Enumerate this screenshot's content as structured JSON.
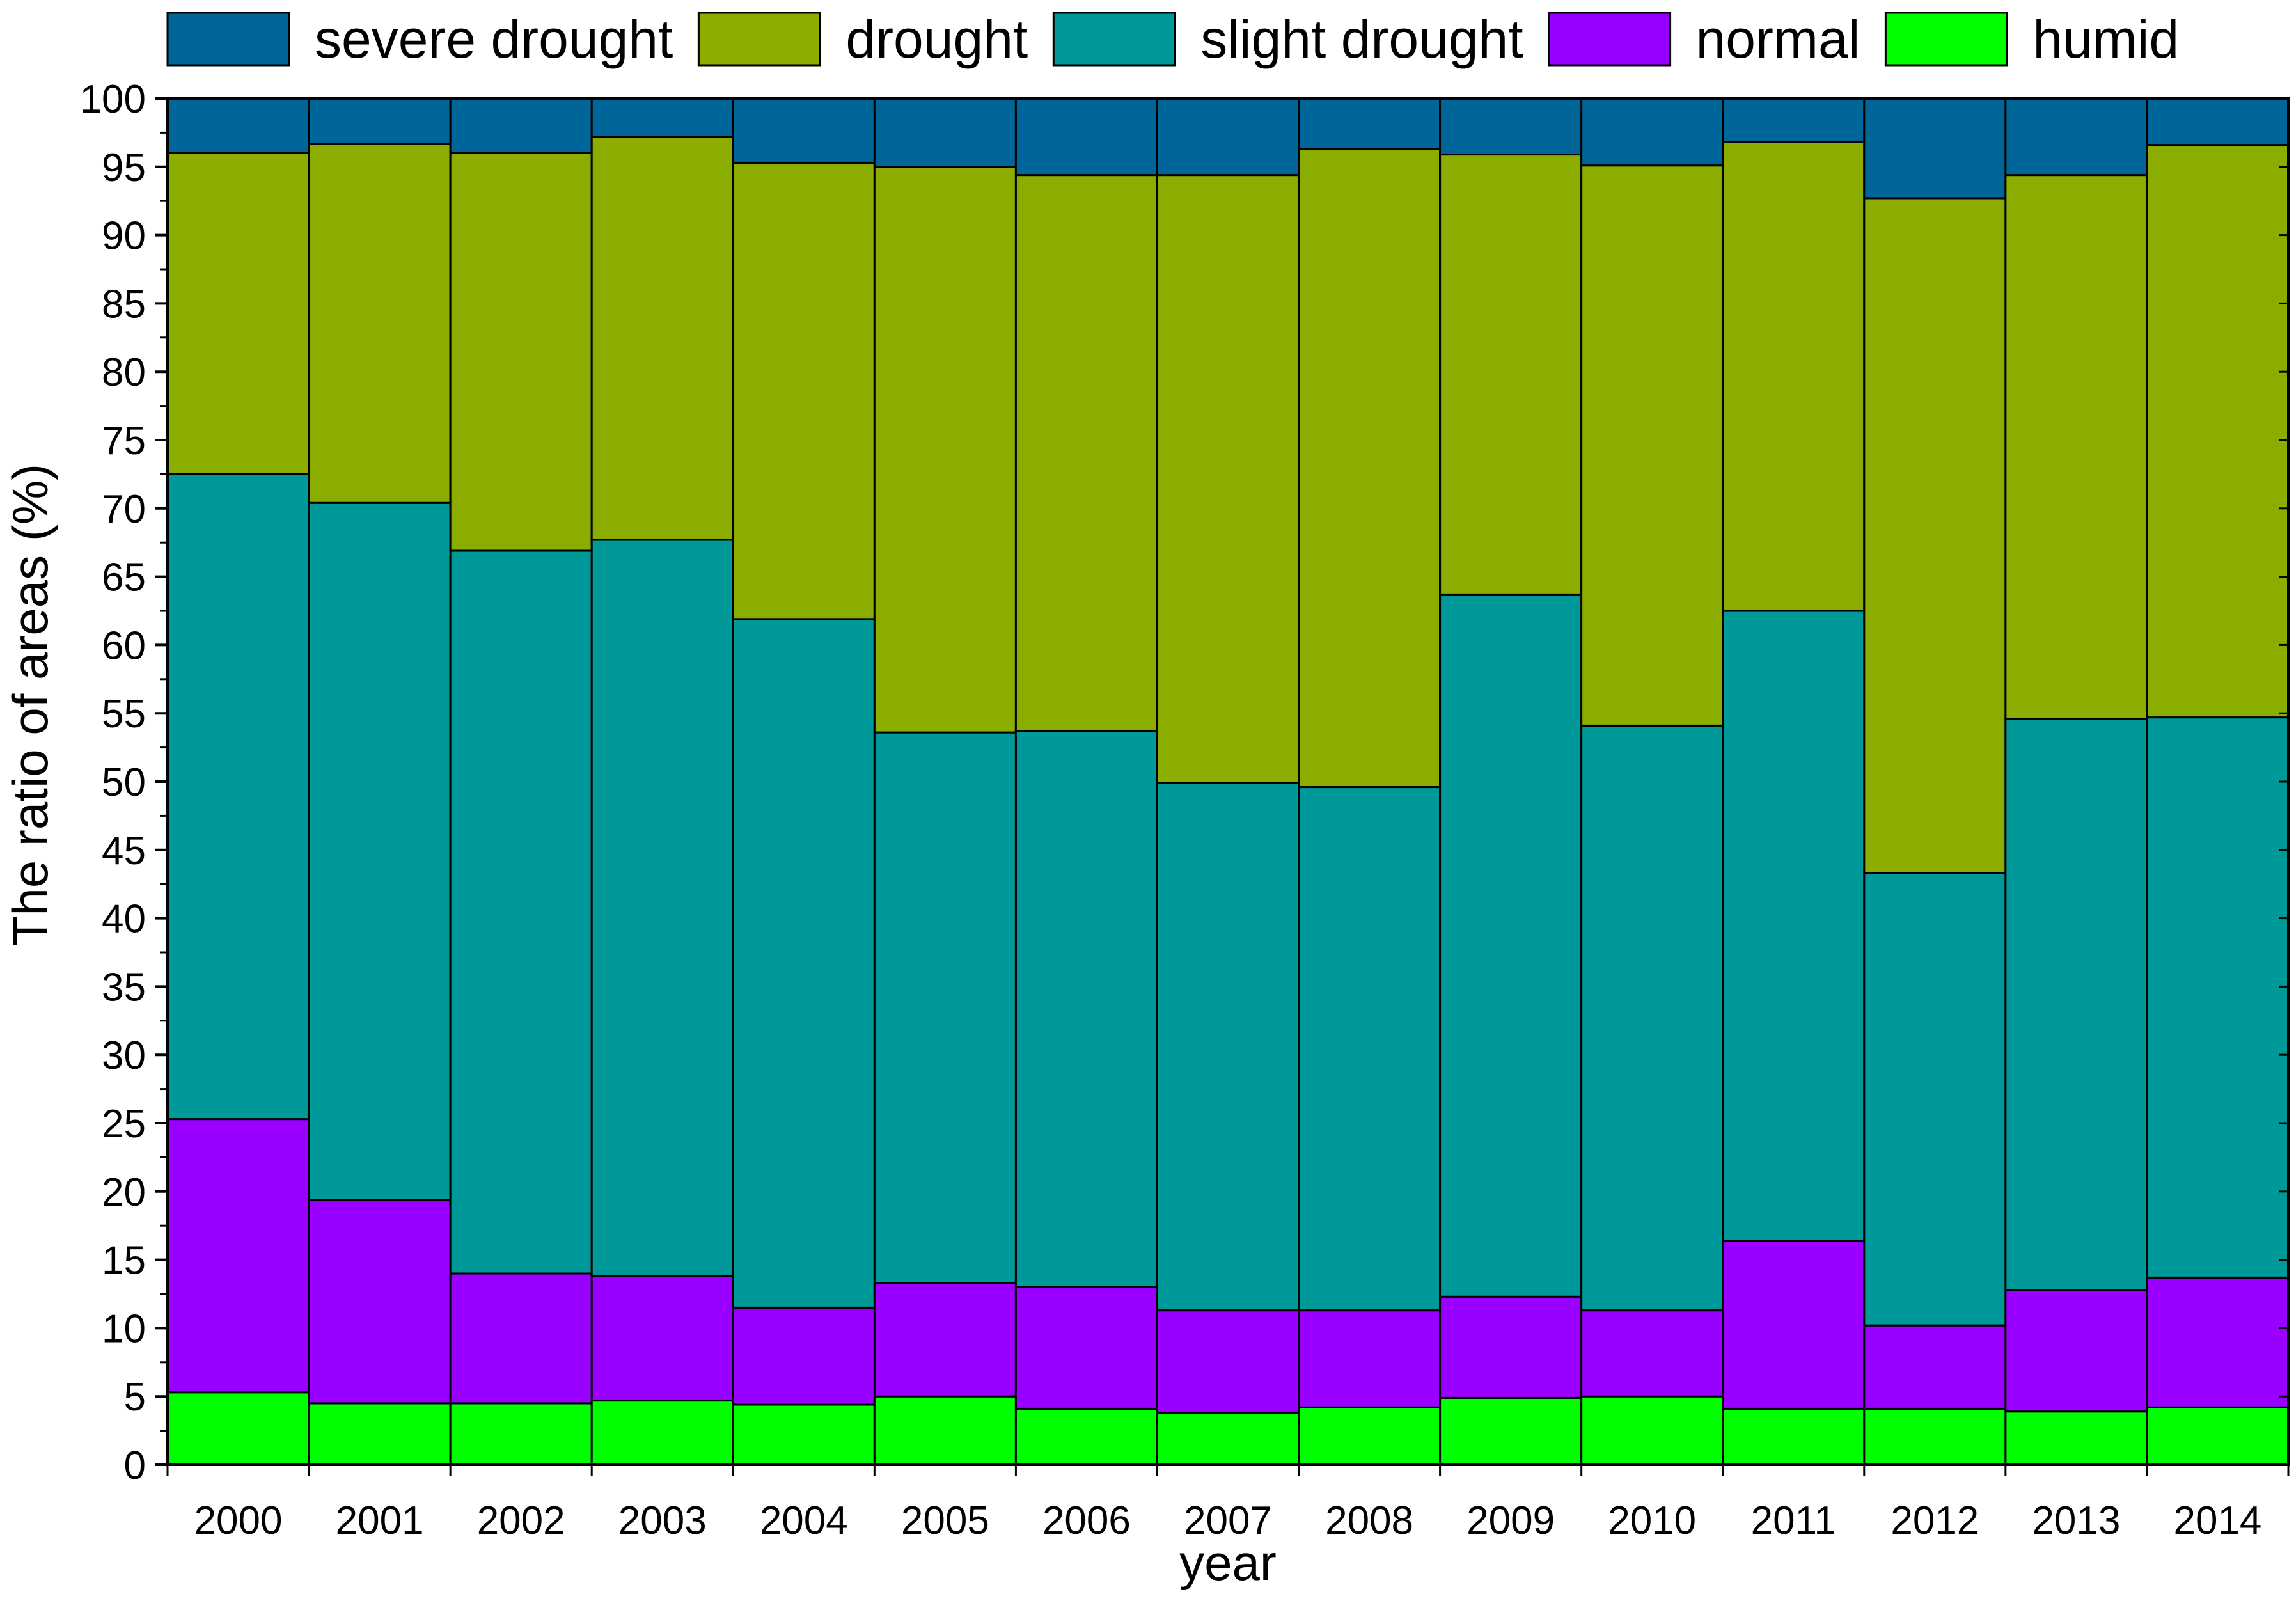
{
  "chart_data": {
    "type": "bar",
    "stacked": true,
    "xlabel": "year",
    "ylabel": "The ratio of areas (%)",
    "ylim": [
      0,
      100
    ],
    "ytick_step": 5,
    "categories": [
      "2000",
      "2001",
      "2002",
      "2003",
      "2004",
      "2005",
      "2006",
      "2007",
      "2008",
      "2009",
      "2010",
      "2011",
      "2012",
      "2013",
      "2014"
    ],
    "series": [
      {
        "name": "humid",
        "color": "#00ff00",
        "values": [
          5.3,
          4.5,
          4.5,
          4.7,
          4.4,
          5.0,
          4.1,
          3.8,
          4.2,
          4.9,
          5.0,
          4.1,
          4.1,
          3.9,
          4.2
        ]
      },
      {
        "name": "normal",
        "color": "#9900ff",
        "values": [
          20.0,
          14.9,
          9.5,
          9.1,
          7.1,
          8.3,
          8.9,
          7.5,
          7.1,
          7.4,
          6.3,
          12.3,
          6.1,
          8.9,
          9.5
        ]
      },
      {
        "name": "slight drought",
        "color": "#009999",
        "values": [
          47.2,
          51.0,
          52.9,
          53.9,
          50.4,
          40.3,
          40.7,
          38.6,
          38.3,
          51.4,
          42.8,
          46.1,
          33.1,
          41.8,
          41.0
        ]
      },
      {
        "name": "drought",
        "color": "#8aad00",
        "values": [
          23.5,
          26.3,
          29.1,
          29.5,
          33.4,
          41.4,
          40.7,
          44.5,
          46.7,
          32.2,
          41.0,
          34.3,
          49.4,
          39.8,
          41.9
        ]
      },
      {
        "name": "severe drought",
        "color": "#006699",
        "values": [
          4.0,
          3.3,
          4.0,
          2.8,
          4.7,
          5.0,
          5.6,
          5.6,
          3.7,
          4.1,
          4.9,
          3.2,
          7.3,
          5.6,
          3.4
        ]
      }
    ],
    "legend": {
      "placement": "top",
      "order": [
        "severe drought",
        "drought",
        "slight drought",
        "normal",
        "humid"
      ]
    },
    "grid": false
  }
}
